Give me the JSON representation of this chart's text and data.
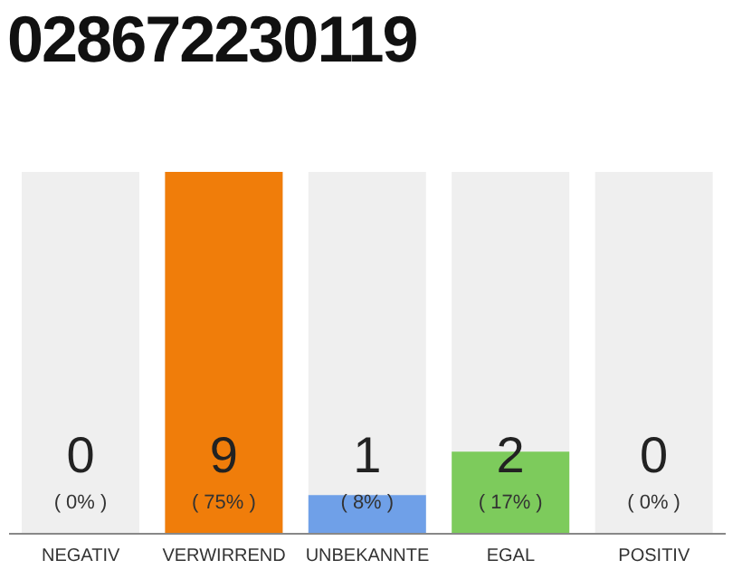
{
  "chart_data": {
    "type": "bar",
    "title": "028672230119",
    "categories": [
      "NEGATIV",
      "VERWIRREND",
      "UNBEKANNTE",
      "EGAL",
      "POSITIV"
    ],
    "values": [
      0,
      75,
      8,
      17,
      0
    ],
    "colors": [
      "#cccccc",
      "#f07d0a",
      "#6fa0e8",
      "#7dcb5c",
      "#cccccc"
    ],
    "value_labels": [
      "( 0% )",
      "( 75% )",
      "( 8% )",
      "( 17% )",
      "( 0% )"
    ],
    "annotations": [
      "0",
      "9",
      "1",
      "2",
      "0"
    ]
  }
}
